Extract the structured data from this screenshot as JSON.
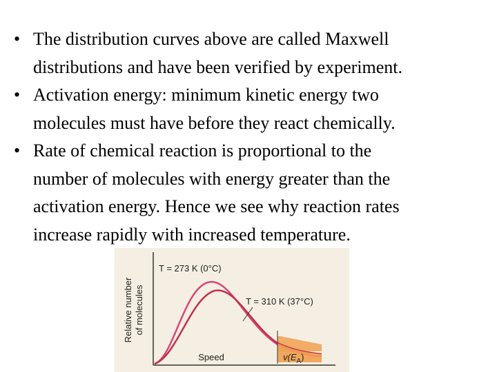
{
  "bullets": [
    {
      "lines": [
        "The distribution curves above are called Maxwell",
        "distributions and have been verified by experiment."
      ]
    },
    {
      "lines": [
        "Activation energy: minimum kinetic energy two",
        "molecules must have before they react chemically."
      ]
    },
    {
      "lines": [
        "Rate of chemical reaction is proportional to the",
        "number of molecules with energy greater than the",
        "activation energy. Hence we see why reaction rates",
        "increase rapidly with increased temperature."
      ]
    }
  ],
  "figure": {
    "curve_labels": [
      "T = 273 K (0°C)",
      "T = 310 K (37°C)"
    ],
    "y_label": [
      "Relative number",
      "of molecules"
    ],
    "x_label": "Speed",
    "threshold_label": {
      "symbol": "v(E",
      "subscript": "A",
      "close": ")"
    }
  }
}
